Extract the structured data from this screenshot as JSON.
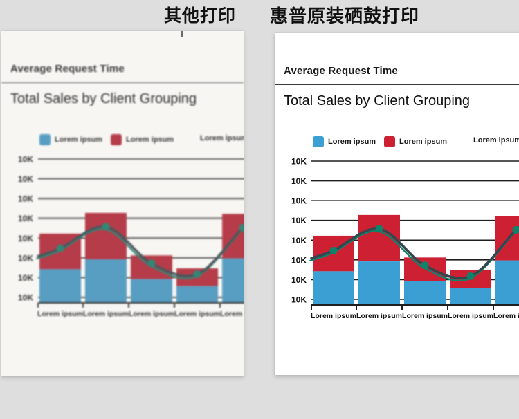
{
  "header": {
    "left_title": "其他打印",
    "right_title": "惠普原装硒鼓打印"
  },
  "report": {
    "title": "Average Request Time",
    "chart_title": "Total Sales by Client Grouping"
  },
  "chart_data": {
    "type": "bar",
    "subtype": "stacked-bar-with-line-overlay",
    "title": "Total Sales by Client Grouping",
    "categories": [
      "Lorem ipsum",
      "Lorem ipsum",
      "Lorem ipsum",
      "Lorem ipsum",
      "Lorem ipsum"
    ],
    "series": [
      {
        "name": "Lorem ipsum",
        "type": "bar",
        "stack": "total",
        "color": "#3b9fd3",
        "values": [
          1.7,
          2.2,
          1.2,
          0.85,
          2.25
        ]
      },
      {
        "name": "Lorem ipsum",
        "type": "bar",
        "stack": "total",
        "color": "#ce2033",
        "values": [
          1.8,
          2.35,
          1.2,
          0.9,
          2.25
        ]
      },
      {
        "name": "Lorem ipsum",
        "type": "line",
        "color": "#35464e",
        "marker_color": "#0f826a",
        "values": [
          2.75,
          3.85,
          2.0,
          1.45,
          3.8
        ]
      }
    ],
    "y_axis": {
      "tick_label": "10K",
      "tick_count": 8,
      "grid": true,
      "ylim": [
        0,
        7.3
      ]
    },
    "x_tick_labels": [
      "Lorem ipsum",
      "Lorem ipsum",
      "Lorem ipsum",
      "Lorem ipsum",
      "Lorem ipsum"
    ],
    "legend_position": "top"
  },
  "colors": {
    "page_background": "#dedede",
    "left_paper": "#f7f6f3",
    "right_paper": "#ffffff",
    "grid": "#1f1f1f",
    "axis_text": "#151515"
  }
}
